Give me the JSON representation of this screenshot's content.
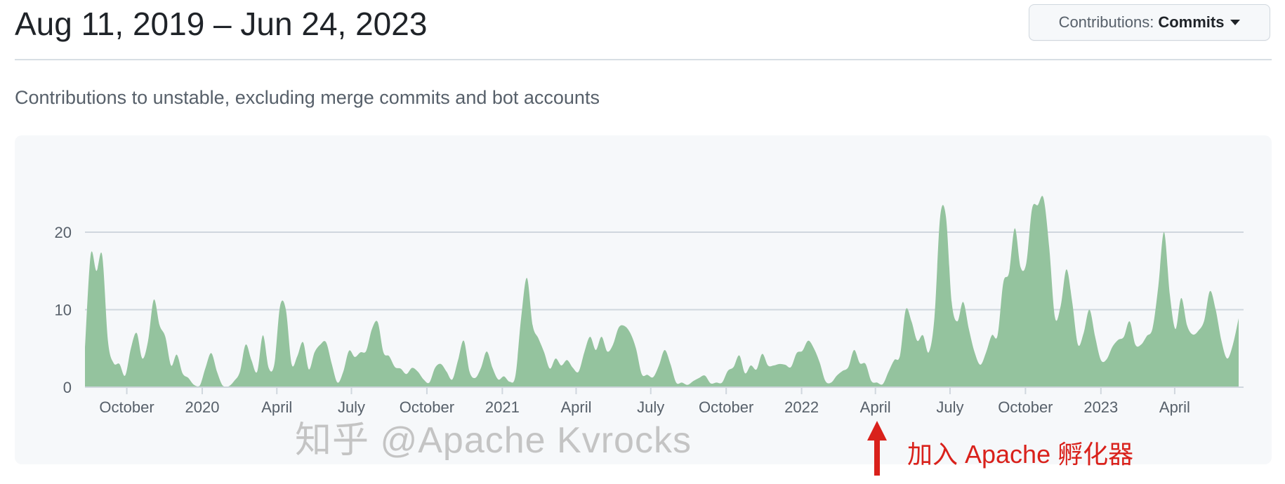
{
  "header": {
    "title": "Aug 11, 2019 – Jun 24, 2023",
    "dropdown": {
      "prefix": "Contributions:",
      "value": "Commits",
      "icon": "caret-down-icon"
    }
  },
  "subtitle": "Contributions to unstable, excluding merge commits and bot accounts",
  "watermark": "知乎 @Apache Kvrocks",
  "annotation": {
    "text": "加入 Apache 孵化器",
    "icon": "arrow-up-icon",
    "color": "#d9211b",
    "date": "2022-04-01"
  },
  "colors": {
    "area": "#94c39e",
    "grid": "#d0d7de",
    "axis_text": "#57606a",
    "panel": "#f6f8fa"
  },
  "chart_data": {
    "type": "area",
    "x_start": "2019-08-11",
    "x_end": "2023-06-24",
    "x_interval": "week",
    "ylim": [
      0,
      26
    ],
    "yticks": [
      0,
      10,
      20
    ],
    "grid": true,
    "xticks": [
      {
        "date": "2019-10-01",
        "label": "October"
      },
      {
        "date": "2020-01-01",
        "label": "2020"
      },
      {
        "date": "2020-04-01",
        "label": "April"
      },
      {
        "date": "2020-07-01",
        "label": "July"
      },
      {
        "date": "2020-10-01",
        "label": "October"
      },
      {
        "date": "2021-01-01",
        "label": "2021"
      },
      {
        "date": "2021-04-01",
        "label": "April"
      },
      {
        "date": "2021-07-01",
        "label": "July"
      },
      {
        "date": "2021-10-01",
        "label": "October"
      },
      {
        "date": "2022-01-01",
        "label": "2022"
      },
      {
        "date": "2022-04-01",
        "label": "April"
      },
      {
        "date": "2022-07-01",
        "label": "July"
      },
      {
        "date": "2022-10-01",
        "label": "October"
      },
      {
        "date": "2023-01-01",
        "label": "2023"
      },
      {
        "date": "2023-04-01",
        "label": "April"
      }
    ],
    "values": [
      5,
      17.1,
      15,
      17,
      6,
      3.1,
      3,
      1.5,
      5,
      7,
      3.7,
      6,
      11.3,
      8,
      6.5,
      2.8,
      4.2,
      1.8,
      1.2,
      0.3,
      0.2,
      2.5,
      4.4,
      2,
      0.2,
      0.1,
      0.8,
      2,
      5.5,
      3.5,
      2,
      6.7,
      2.5,
      3,
      10.5,
      10,
      3,
      4,
      5.8,
      2.3,
      4.5,
      5.5,
      5.8,
      3,
      0.6,
      2,
      4.7,
      3.9,
      4.5,
      4.7,
      7.5,
      8.4,
      4.5,
      4,
      2.6,
      2.4,
      1.7,
      2.5,
      2,
      1,
      0.6,
      2.5,
      3,
      2,
      1,
      3.5,
      6,
      2,
      1.2,
      2.5,
      4.6,
      2.5,
      1,
      1.4,
      0.7,
      1.5,
      9,
      14.1,
      8,
      6.3,
      4.5,
      2.4,
      3.7,
      2.8,
      3.5,
      2.5,
      2,
      4.5,
      6.5,
      4.8,
      6.5,
      4.6,
      5.5,
      7.7,
      7.9,
      7,
      5,
      1.7,
      1.6,
      1.3,
      2.8,
      4.8,
      3,
      0.6,
      0.6,
      0.3,
      0.8,
      1.2,
      1.5,
      0.5,
      0.6,
      0.6,
      2.1,
      2.6,
      4.1,
      1.8,
      2.8,
      2.3,
      4.3,
      2.8,
      2.8,
      3,
      2.9,
      2.6,
      4.4,
      4.7,
      6,
      5,
      3.2,
      0.8,
      0.6,
      1.5,
      2.1,
      2.6,
      4.8,
      3.1,
      3,
      0.8,
      0.6,
      0.4,
      2,
      3.5,
      4.1,
      10,
      8.5,
      6,
      6.7,
      4.5,
      9,
      22,
      22,
      11,
      8.5,
      11,
      7.5,
      4.5,
      2.9,
      4.5,
      6.7,
      6.7,
      13.5,
      14.8,
      20.5,
      15.5,
      16,
      23,
      23.5,
      24.4,
      18,
      9,
      10.5,
      15.2,
      11,
      5.5,
      7,
      10,
      6.5,
      3.5,
      3.6,
      5.2,
      6.1,
      6.5,
      8.5,
      5.5,
      5.5,
      6.6,
      7.6,
      13,
      20,
      12,
      7.5,
      11.5,
      8,
      6.8,
      7.3,
      8.6,
      12.4,
      10,
      6,
      3.7,
      5.5,
      8.9
    ]
  }
}
